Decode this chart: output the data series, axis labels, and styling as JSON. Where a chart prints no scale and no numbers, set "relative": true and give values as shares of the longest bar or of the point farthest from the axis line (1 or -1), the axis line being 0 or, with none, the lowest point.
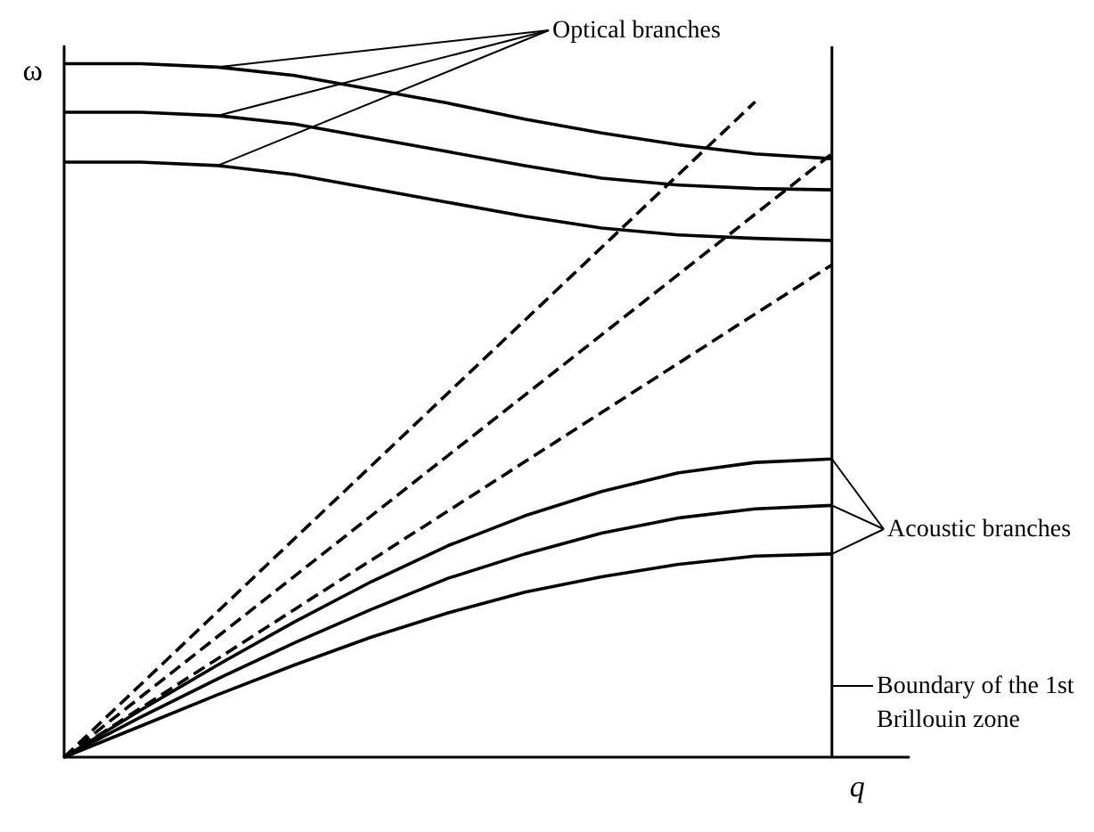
{
  "chart_data": {
    "type": "line",
    "relative": true,
    "xlabel": "q",
    "ylabel": "ω",
    "grid": false,
    "marker": "none",
    "categories": [
      null,
      null,
      null,
      null,
      null,
      null,
      null,
      null,
      null,
      null,
      null,
      null
    ],
    "series": [
      {
        "color": "#000000",
        "values": [
          1,
          1,
          0.995,
          0.983,
          0.963,
          0.943,
          0.92,
          0.9,
          0.883,
          0.87,
          0.863,
          null
        ]
      },
      {
        "color": "#000000",
        "values": [
          0.93,
          0.93,
          0.925,
          0.913,
          0.893,
          0.873,
          0.853,
          0.835,
          0.825,
          0.82,
          0.818,
          null
        ]
      },
      {
        "color": "#000000",
        "values": [
          0.858,
          0.858,
          0.853,
          0.84,
          0.82,
          0.8,
          0.78,
          0.763,
          0.753,
          0.748,
          0.745,
          null
        ]
      },
      {
        "color": "#000000",
        "values": [
          0,
          0.068,
          0.133,
          0.195,
          0.253,
          0.305,
          0.348,
          0.383,
          0.41,
          0.425,
          0.43,
          null
        ]
      },
      {
        "color": "#000000",
        "values": [
          0,
          0.058,
          0.113,
          0.165,
          0.213,
          0.258,
          0.293,
          0.323,
          0.345,
          0.358,
          0.363,
          null
        ]
      },
      {
        "color": "#000000",
        "values": [
          0,
          0.045,
          0.09,
          0.133,
          0.173,
          0.208,
          0.238,
          0.26,
          0.278,
          0.29,
          0.293,
          null
        ]
      },
      {
        "color": "#000000",
        "line_style": "dashed",
        "values": [
          0,
          0.105,
          0.21,
          0.315,
          0.42,
          0.525,
          0.63,
          0.735,
          0.84,
          0.945,
          null,
          null
        ]
      },
      {
        "color": "#000000",
        "line_style": "dashed",
        "values": [
          0,
          0.087,
          0.174,
          0.261,
          0.348,
          0.435,
          0.522,
          0.609,
          0.696,
          0.783,
          0.87,
          null
        ]
      },
      {
        "color": "#000000",
        "line_style": "dashed",
        "values": [
          0,
          0.071,
          0.142,
          0.213,
          0.284,
          0.355,
          0.426,
          0.497,
          0.568,
          0.639,
          0.71,
          null
        ]
      }
    ],
    "annotations": [
      "Optical branches",
      "Acoustic branches",
      "Boundary of the 1st\nBrillouin zone"
    ]
  }
}
